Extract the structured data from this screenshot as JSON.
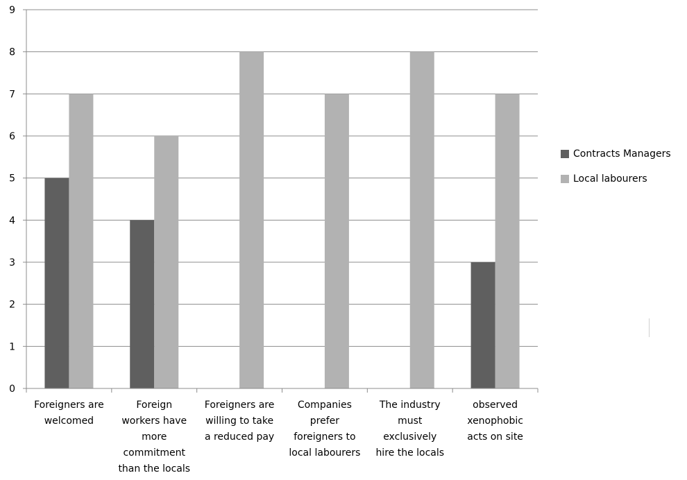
{
  "chart_data": {
    "type": "bar",
    "categories": [
      [
        "Foreigners are",
        "welcomed"
      ],
      [
        "Foreign",
        "workers have",
        "more",
        "commitment",
        "than the locals"
      ],
      [
        "Foreigners are",
        "willing to take",
        "a reduced pay"
      ],
      [
        "Companies",
        "prefer",
        "foreigners to",
        "local labourers"
      ],
      [
        "The industry",
        "must",
        "exclusively",
        "hire the locals"
      ],
      [
        "observed",
        "xenophobic",
        "acts on site"
      ]
    ],
    "series": [
      {
        "name": "Contracts Managers",
        "values": [
          5,
          4,
          0,
          0,
          0,
          3
        ],
        "color": "#5f5f5f"
      },
      {
        "name": "Local labourers",
        "values": [
          7,
          6,
          8,
          7,
          8,
          7
        ],
        "color": "#b2b2b2"
      }
    ],
    "yticks": [
      "0",
      "1",
      "2",
      "3",
      "4",
      "5",
      "6",
      "7",
      "8",
      "9"
    ],
    "ylim": [
      0,
      9
    ],
    "grid": true,
    "legend_position": "right"
  }
}
